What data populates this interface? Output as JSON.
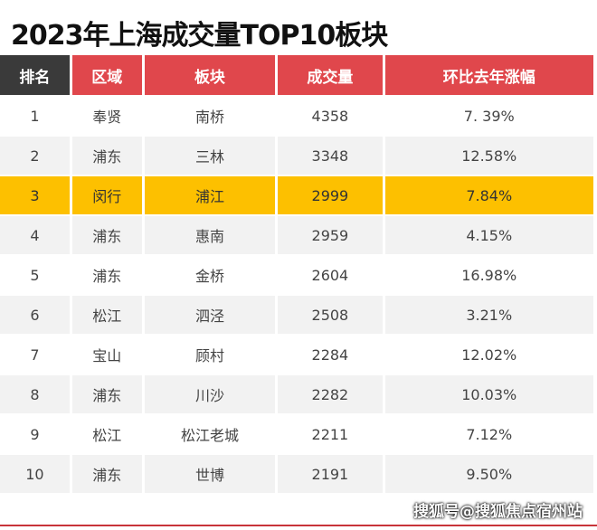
{
  "title": "2023年上海成交量TOP10板块",
  "headers": [
    "排名",
    "区域",
    "板块",
    "成交量",
    "环比去年涨幅"
  ],
  "rows": [
    [
      "1",
      "奉贤",
      "南桥",
      "4358",
      "7. 39%"
    ],
    [
      "2",
      "浦东",
      "三林",
      "3348",
      "12.58%"
    ],
    [
      "3",
      "闵行",
      "浦江",
      "2999",
      "7.84%"
    ],
    [
      "4",
      "浦东",
      "惠南",
      "2959",
      "4.15%"
    ],
    [
      "5",
      "浦东",
      "金桥",
      "2604",
      "16.98%"
    ],
    [
      "6",
      "松江",
      "泗泾",
      "2508",
      "3.21%"
    ],
    [
      "7",
      "宝山",
      "顾村",
      "2284",
      "12.02%"
    ],
    [
      "8",
      "浦东",
      "川沙",
      "2282",
      "10.03%"
    ],
    [
      "9",
      "松江",
      "松江老城",
      "2211",
      "7.12%"
    ],
    [
      "10",
      "浦东",
      "世博",
      "2191",
      "9.50%"
    ]
  ],
  "highlighted_row": 3,
  "colors": {
    "header": "#e0474c",
    "header_rank": "#3a3a3a",
    "highlight": "#fdc000",
    "stripe": "#f2f2f2"
  },
  "watermark": "搜狐号@搜狐焦点宿州站"
}
